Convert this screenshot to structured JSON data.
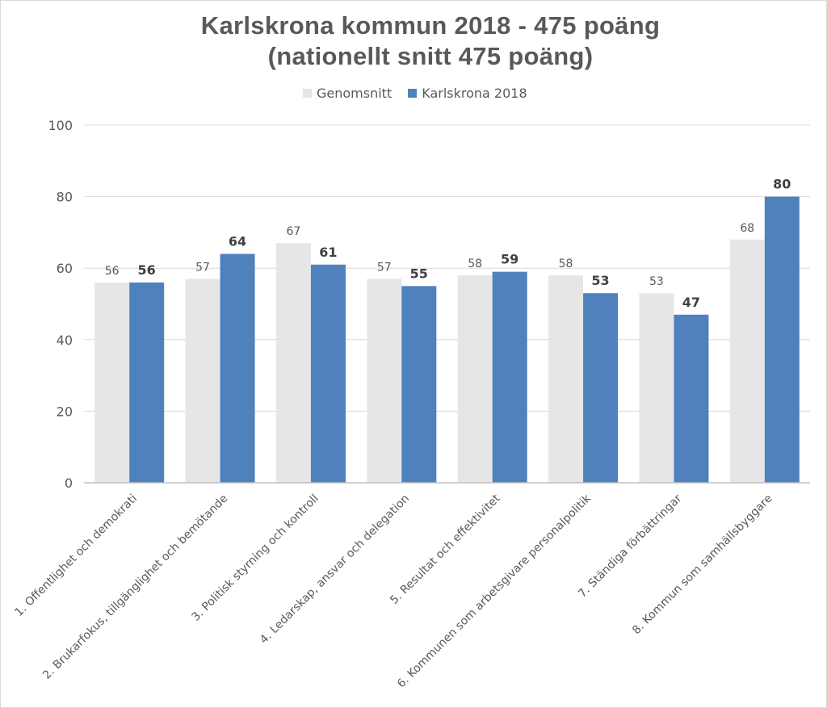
{
  "chart_data": {
    "type": "bar",
    "title": "Karlskrona kommun 2018 - 475 poäng",
    "subtitle": "(nationellt snitt 475 poäng)",
    "categories": [
      "1. Offentlighet  och demokrati",
      "2. Brukarfokus, tillgänglighet  och bemötande",
      "3. Politisk styrning och kontroll",
      "4. Ledarskap, ansvar och delegation",
      "5. Resultat  och effektivitet",
      "6. Kommunen som arbetsgivare personalpolitik",
      "7. Ständiga förbättringar",
      "8. Kommun som samhällsbyggare"
    ],
    "series": [
      {
        "name": "Genomsnitt",
        "color": "#e7e6e6",
        "values": [
          56,
          57,
          67,
          57,
          58,
          58,
          53,
          68
        ]
      },
      {
        "name": "Karlskrona 2018",
        "color": "#4f81bd",
        "values": [
          56,
          64,
          61,
          55,
          59,
          53,
          47,
          80
        ]
      }
    ],
    "ylim": [
      0,
      100
    ],
    "yticks": [
      0,
      20,
      40,
      60,
      80,
      100
    ],
    "grid": true,
    "legend_position": "top"
  }
}
